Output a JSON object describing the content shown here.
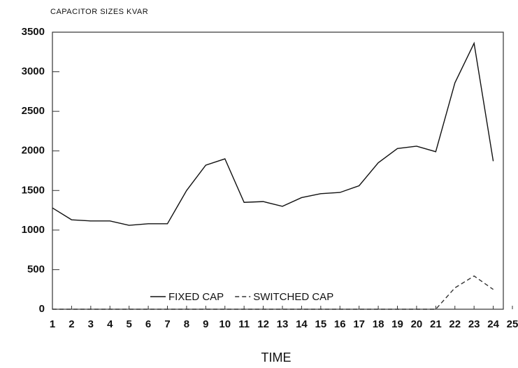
{
  "chart_data": {
    "type": "line",
    "title": "CAPACITOR SIZES KVAR",
    "x_label": "TIME",
    "x": [
      1,
      2,
      3,
      4,
      5,
      6,
      7,
      8,
      9,
      10,
      11,
      12,
      13,
      14,
      15,
      16,
      17,
      18,
      19,
      20,
      21,
      22,
      23,
      24,
      25
    ],
    "xlim": [
      1,
      25
    ],
    "xticks": [
      1,
      2,
      3,
      4,
      5,
      6,
      7,
      8,
      9,
      10,
      11,
      12,
      13,
      14,
      15,
      16,
      17,
      18,
      19,
      20,
      21,
      22,
      23,
      24,
      25
    ],
    "ylim": [
      0,
      3500
    ],
    "yticks": [
      0,
      500,
      1000,
      1500,
      2000,
      2500,
      3000,
      3500
    ],
    "series": [
      {
        "name": "FIXED CAP",
        "color": "#111111",
        "dash": "solid",
        "values": [
          1280,
          1130,
          1115,
          1115,
          1060,
          1080,
          1080,
          1500,
          1820,
          1900,
          1350,
          1360,
          1300,
          1410,
          1460,
          1475,
          1560,
          1850,
          2030,
          2060,
          1990,
          2860,
          3360,
          1870,
          null
        ]
      },
      {
        "name": "SWITCHED CAP",
        "color": "#333333",
        "dash": "dashed",
        "values": [
          0,
          0,
          0,
          0,
          0,
          0,
          0,
          0,
          0,
          0,
          0,
          0,
          0,
          0,
          0,
          0,
          0,
          0,
          0,
          0,
          0,
          270,
          420,
          250,
          null
        ]
      }
    ]
  }
}
